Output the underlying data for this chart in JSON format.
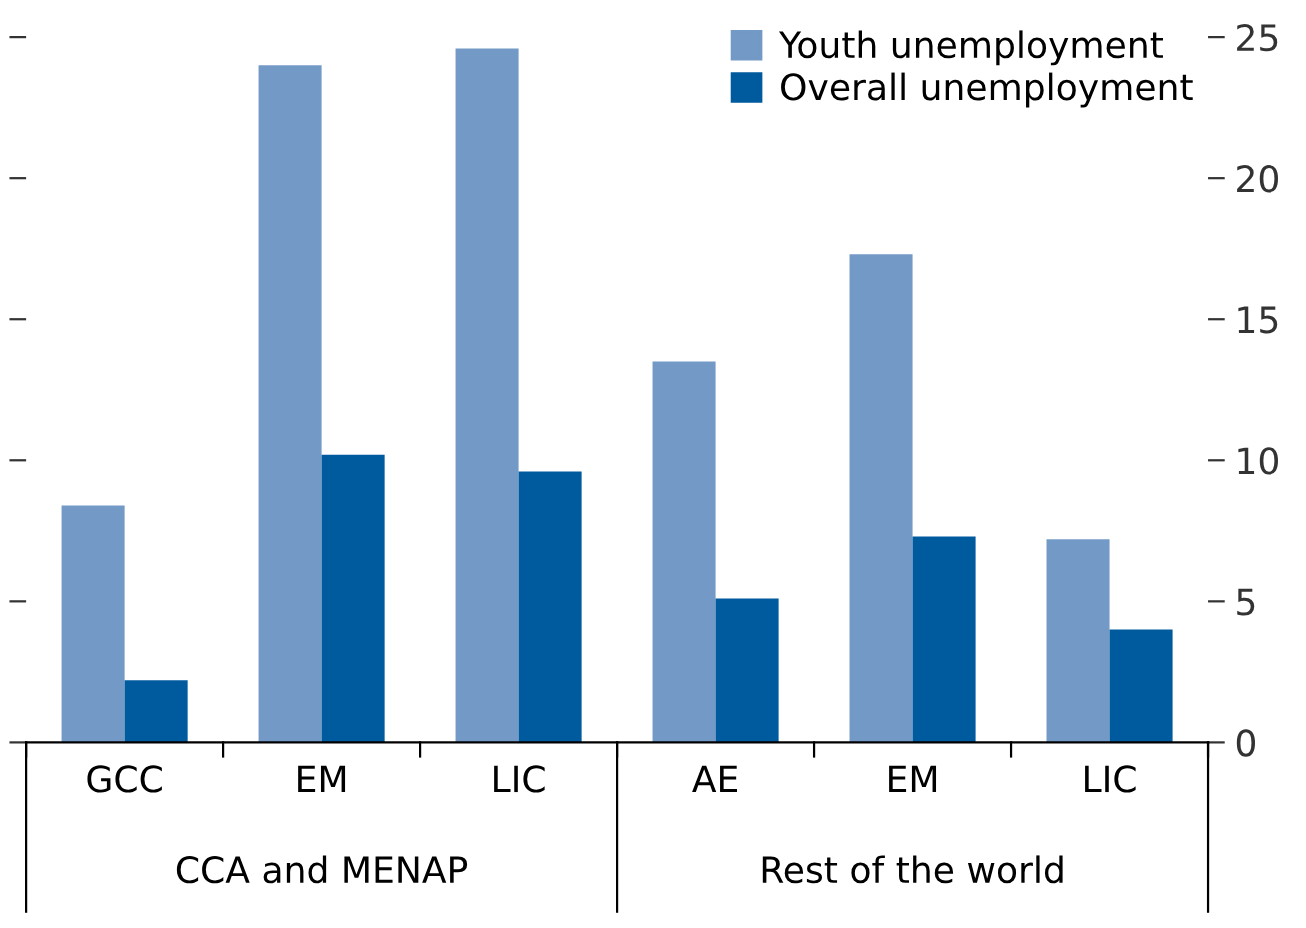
{
  "chart_data": {
    "type": "bar",
    "categories": [
      "GCC",
      "EM",
      "LIC",
      "AE",
      "EM",
      "LIC"
    ],
    "series": [
      {
        "name": "Youth unemployment",
        "color": "#7399c6",
        "values": [
          8.4,
          24.0,
          24.6,
          13.5,
          17.3,
          7.2
        ]
      },
      {
        "name": "Overall unemployment",
        "color": "#005a9e",
        "values": [
          2.2,
          10.2,
          9.6,
          5.1,
          7.3,
          4.0
        ]
      }
    ],
    "ylim": [
      0,
      25
    ],
    "yticks": [
      0,
      5,
      10,
      15,
      20,
      25
    ],
    "grid": false,
    "legend": "top right",
    "annotations": [
      "CCA and MENAP",
      "Rest of the world"
    ]
  }
}
